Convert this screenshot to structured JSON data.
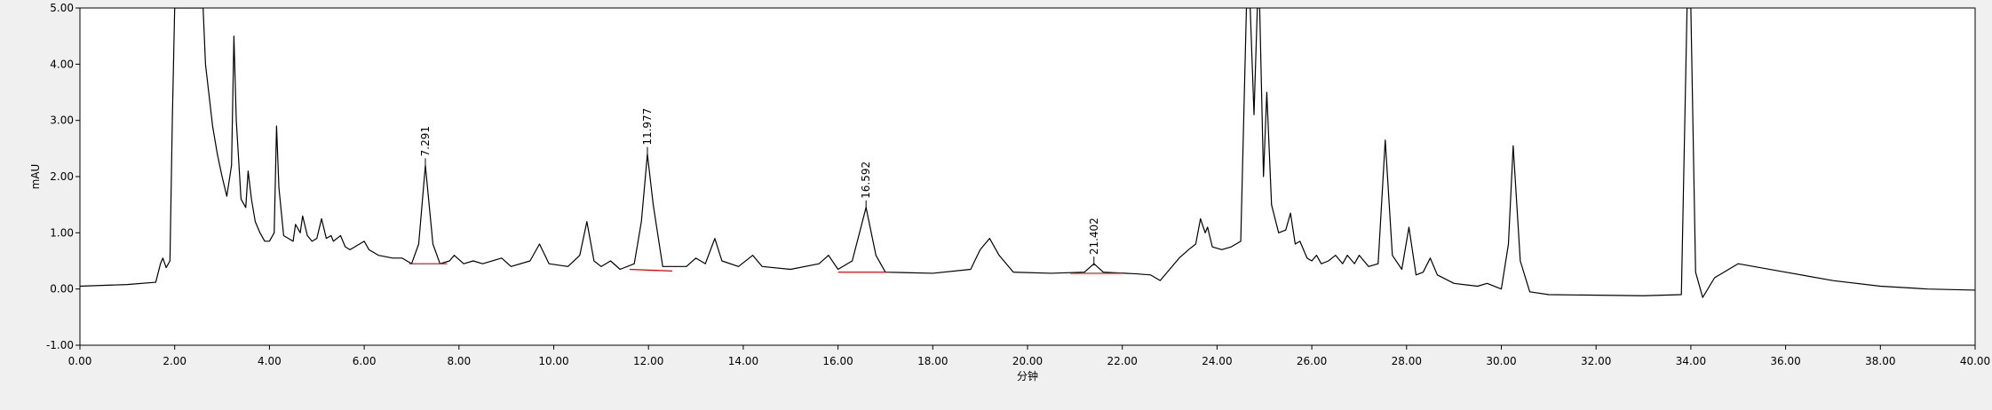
{
  "chart_data": {
    "type": "line",
    "xlabel": "分钟",
    "ylabel": "mAU",
    "x": [
      0,
      1.0,
      1.6,
      1.7,
      1.75,
      1.82,
      1.9,
      1.95,
      2.0,
      2.6,
      2.65,
      2.8,
      2.9,
      3.0,
      3.1,
      3.2,
      3.25,
      3.3,
      3.4,
      3.5,
      3.55,
      3.62,
      3.7,
      3.8,
      3.9,
      4.0,
      4.1,
      4.15,
      4.2,
      4.3,
      4.5,
      4.55,
      4.65,
      4.7,
      4.8,
      4.9,
      5.0,
      5.1,
      5.2,
      5.3,
      5.35,
      5.5,
      5.6,
      5.7,
      5.9,
      6.0,
      6.1,
      6.3,
      6.6,
      6.8,
      7.0,
      7.15,
      7.291,
      7.45,
      7.6,
      7.8,
      7.9,
      8.1,
      8.3,
      8.5,
      8.9,
      9.1,
      9.5,
      9.7,
      9.9,
      10.3,
      10.55,
      10.7,
      10.85,
      11.0,
      11.2,
      11.4,
      11.7,
      11.85,
      11.977,
      12.1,
      12.3,
      12.8,
      13.0,
      13.2,
      13.4,
      13.55,
      13.9,
      14.2,
      14.4,
      15.0,
      15.6,
      15.8,
      16.0,
      16.3,
      16.592,
      16.8,
      17.0,
      18.0,
      18.8,
      19.0,
      19.2,
      19.4,
      19.7,
      20.5,
      21.2,
      21.402,
      21.6,
      22.3,
      22.6,
      22.8,
      23.0,
      23.2,
      23.4,
      23.55,
      23.65,
      23.75,
      23.8,
      23.9,
      24.1,
      24.3,
      24.5,
      24.62,
      24.7,
      24.78,
      24.85,
      24.9,
      24.98,
      25.05,
      25.15,
      25.3,
      25.45,
      25.55,
      25.65,
      25.75,
      25.9,
      26.0,
      26.1,
      26.2,
      26.35,
      26.5,
      26.65,
      26.75,
      26.9,
      27.0,
      27.2,
      27.4,
      27.55,
      27.7,
      27.9,
      28.05,
      28.2,
      28.35,
      28.5,
      28.65,
      29.0,
      29.5,
      29.7,
      30.0,
      30.15,
      30.25,
      30.4,
      30.6,
      31.0,
      33.0,
      33.8,
      33.92,
      34.0,
      34.1,
      34.25,
      34.5,
      35.0,
      36.0,
      37.0,
      38.0,
      39.0,
      40.0
    ],
    "series": [
      {
        "color": "#000000",
        "values": [
          0.05,
          0.08,
          0.12,
          0.45,
          0.55,
          0.38,
          0.5,
          3.0,
          5.0,
          5.0,
          4.0,
          2.9,
          2.4,
          2.0,
          1.65,
          2.2,
          4.5,
          3.0,
          1.6,
          1.45,
          2.1,
          1.6,
          1.2,
          1.0,
          0.85,
          0.85,
          1.0,
          2.9,
          1.8,
          0.95,
          0.85,
          1.15,
          1.0,
          1.3,
          0.95,
          0.85,
          0.9,
          1.25,
          0.9,
          0.95,
          0.85,
          0.95,
          0.75,
          0.7,
          0.8,
          0.85,
          0.7,
          0.6,
          0.55,
          0.55,
          0.45,
          0.8,
          2.2,
          0.8,
          0.45,
          0.5,
          0.6,
          0.45,
          0.5,
          0.45,
          0.55,
          0.4,
          0.5,
          0.8,
          0.45,
          0.4,
          0.6,
          1.2,
          0.5,
          0.4,
          0.5,
          0.35,
          0.45,
          1.2,
          2.4,
          1.5,
          0.4,
          0.4,
          0.55,
          0.45,
          0.9,
          0.5,
          0.4,
          0.6,
          0.4,
          0.35,
          0.45,
          0.6,
          0.35,
          0.5,
          1.45,
          0.6,
          0.3,
          0.28,
          0.35,
          0.7,
          0.9,
          0.6,
          0.3,
          0.28,
          0.3,
          0.45,
          0.3,
          0.27,
          0.25,
          0.15,
          0.35,
          0.55,
          0.7,
          0.8,
          1.25,
          1.0,
          1.1,
          0.75,
          0.7,
          0.75,
          0.85,
          5.0,
          5.0,
          3.1,
          5.0,
          5.0,
          2.0,
          3.5,
          1.5,
          1.0,
          1.05,
          1.35,
          0.8,
          0.85,
          0.55,
          0.5,
          0.6,
          0.45,
          0.5,
          0.6,
          0.45,
          0.6,
          0.45,
          0.6,
          0.4,
          0.45,
          2.65,
          0.6,
          0.35,
          1.1,
          0.25,
          0.3,
          0.55,
          0.25,
          0.1,
          0.05,
          0.1,
          0.0,
          0.8,
          2.55,
          0.5,
          -0.05,
          -0.1,
          -0.12,
          -0.1,
          5.0,
          5.0,
          0.3,
          -0.15,
          0.2,
          0.45,
          0.3,
          0.15,
          0.05,
          0.0,
          -0.02
        ]
      }
    ],
    "peaks": [
      {
        "x": 7.291,
        "y": 2.2,
        "baseline_x": [
          6.95,
          7.75
        ],
        "baseline_y": [
          0.45,
          0.45
        ]
      },
      {
        "x": 11.977,
        "y": 2.4,
        "baseline_x": [
          11.6,
          12.5
        ],
        "baseline_y": [
          0.35,
          0.32
        ]
      },
      {
        "x": 16.592,
        "y": 1.45,
        "baseline_x": [
          16.0,
          17.0
        ],
        "baseline_y": [
          0.3,
          0.3
        ]
      },
      {
        "x": 21.402,
        "y": 0.45,
        "baseline_x": [
          20.9,
          22.0
        ],
        "baseline_y": [
          0.28,
          0.28
        ]
      }
    ],
    "xlim": [
      0,
      40
    ],
    "ylim": [
      -1,
      5
    ],
    "xticks": [
      {
        "value": 0,
        "label": "0.00"
      },
      {
        "value": 2,
        "label": "2.00"
      },
      {
        "value": 4,
        "label": "4.00"
      },
      {
        "value": 6,
        "label": "6.00"
      },
      {
        "value": 8,
        "label": "8.00"
      },
      {
        "value": 10,
        "label": "10.00"
      },
      {
        "value": 12,
        "label": "12.00"
      },
      {
        "value": 14,
        "label": "14.00"
      },
      {
        "value": 16,
        "label": "16.00"
      },
      {
        "value": 18,
        "label": "18.00"
      },
      {
        "value": 20,
        "label": "20.00"
      },
      {
        "value": 22,
        "label": "22.00"
      },
      {
        "value": 24,
        "label": "24.00"
      },
      {
        "value": 26,
        "label": "26.00"
      },
      {
        "value": 28,
        "label": "28.00"
      },
      {
        "value": 30,
        "label": "30.00"
      },
      {
        "value": 32,
        "label": "32.00"
      },
      {
        "value": 34,
        "label": "34.00"
      },
      {
        "value": 36,
        "label": "36.00"
      },
      {
        "value": 38,
        "label": "38.00"
      },
      {
        "value": 40,
        "label": "40.00"
      }
    ],
    "yticks": [
      {
        "value": -1,
        "label": "-1.00"
      },
      {
        "value": 0,
        "label": "0.00"
      },
      {
        "value": 1,
        "label": "1.00"
      },
      {
        "value": 2,
        "label": "2.00"
      },
      {
        "value": 3,
        "label": "3.00"
      },
      {
        "value": 4,
        "label": "4.00"
      },
      {
        "value": 5,
        "label": "5.00"
      }
    ],
    "baseline_color": "#e00000"
  }
}
